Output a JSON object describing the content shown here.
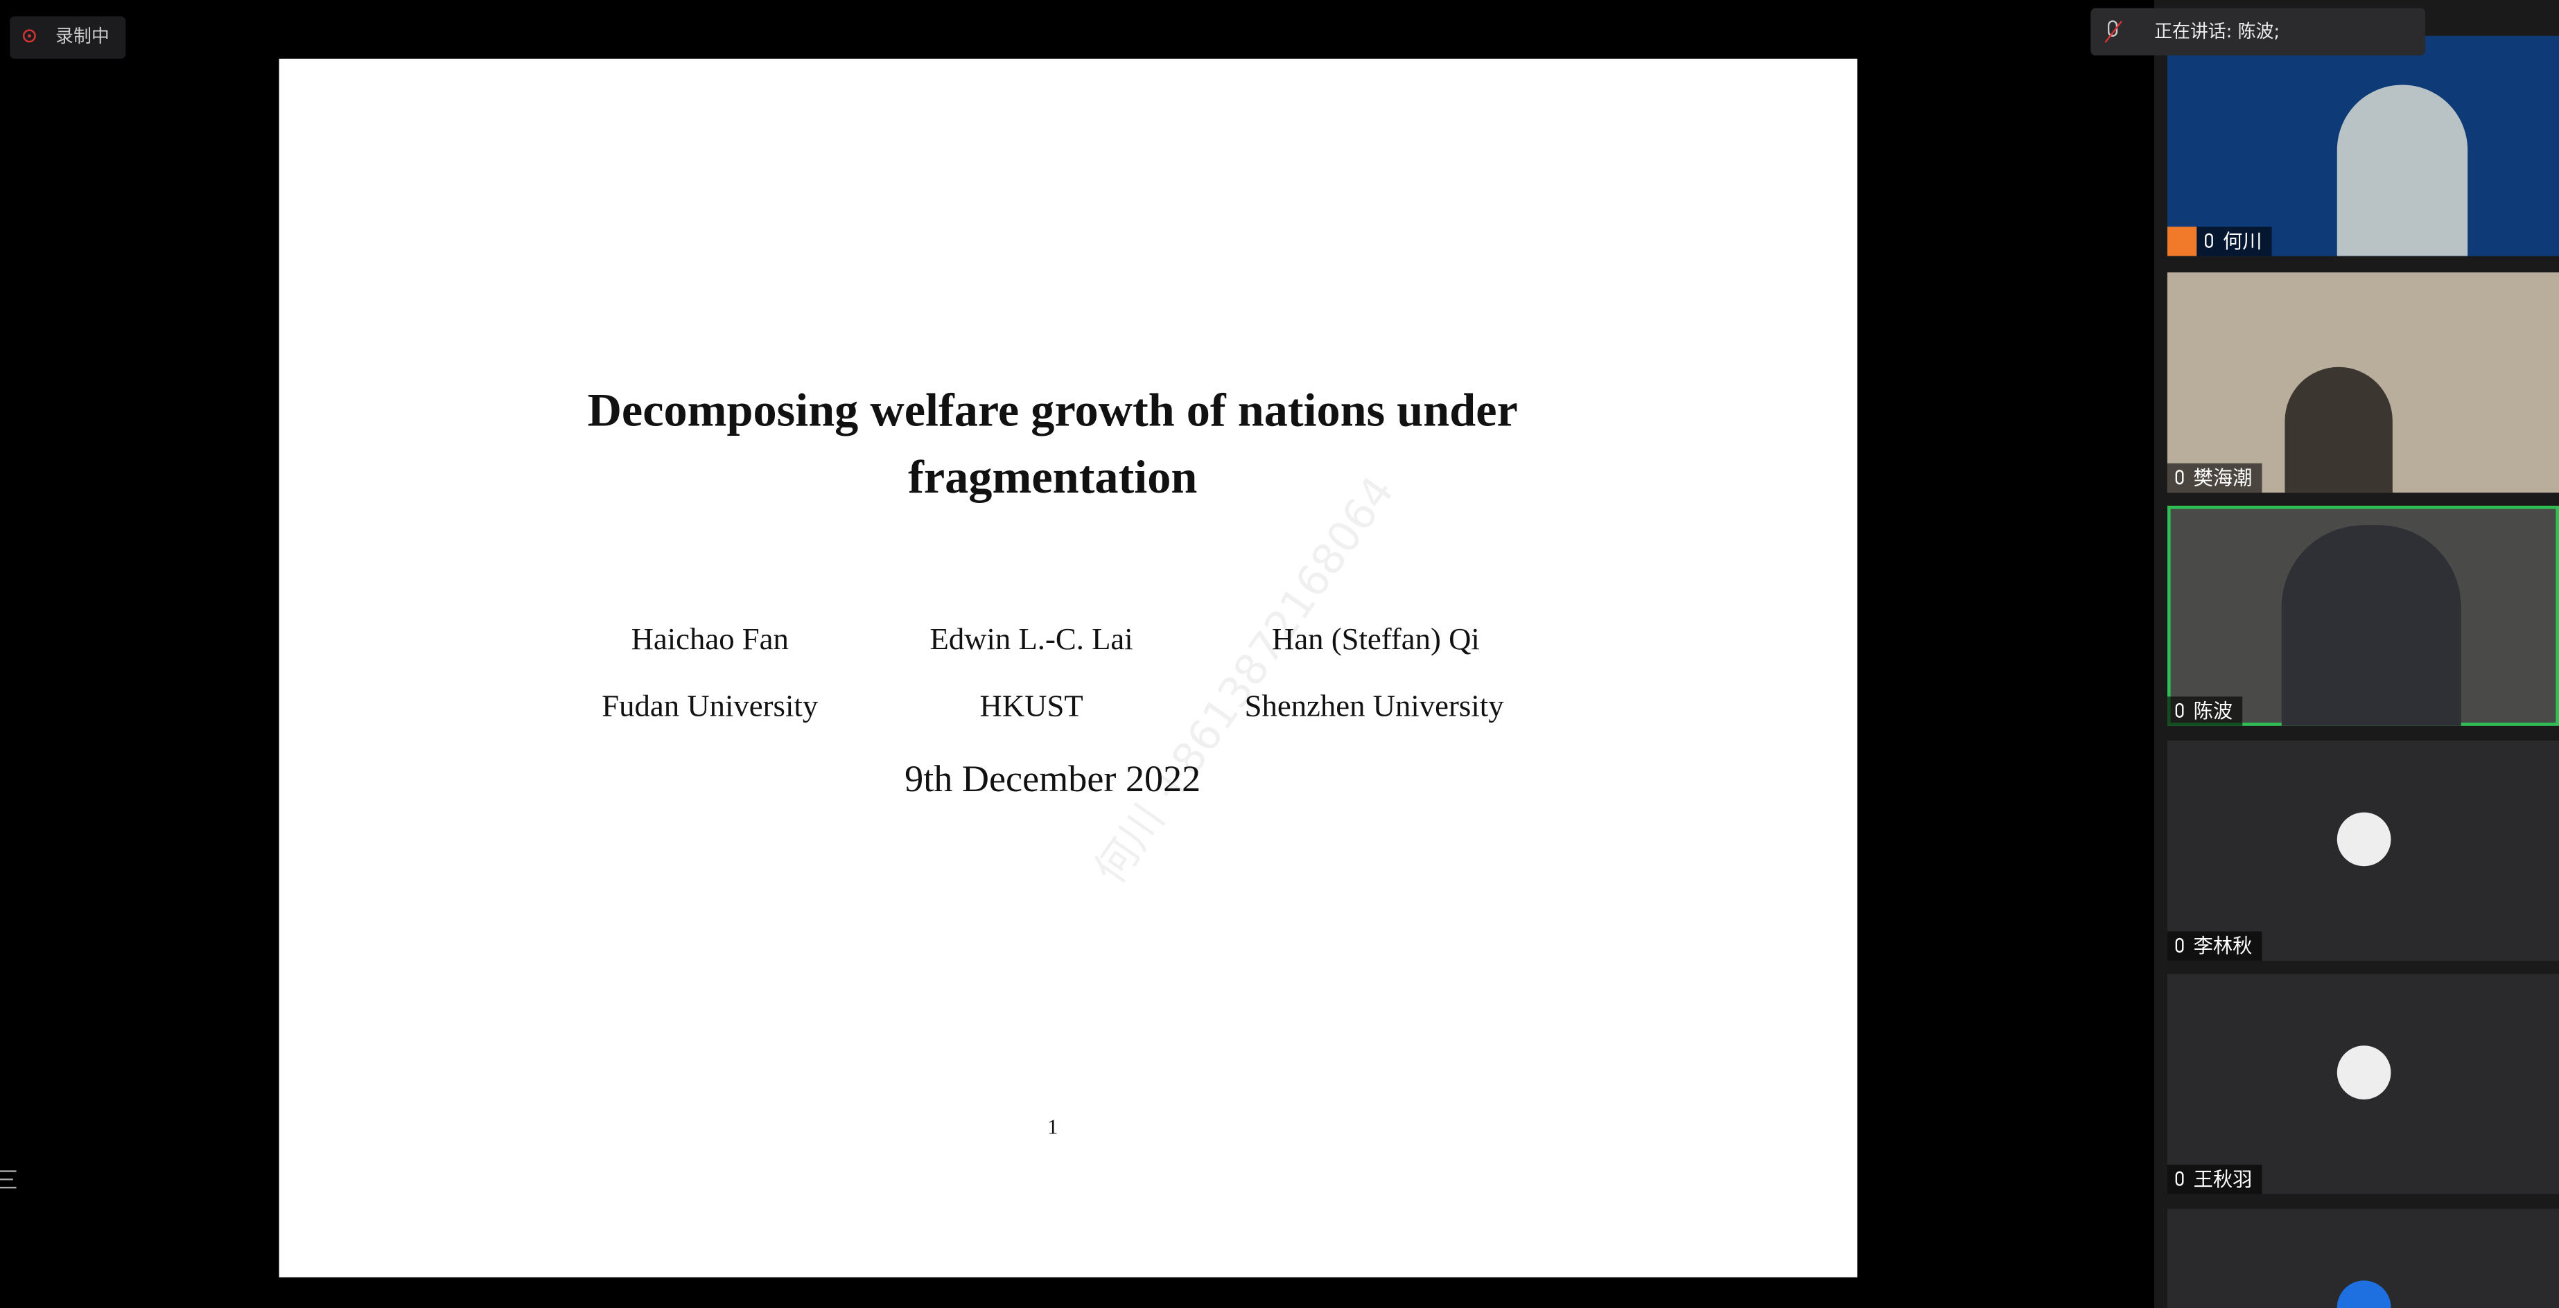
{
  "recording": {
    "label": "录制中"
  },
  "slide": {
    "title_lines": [
      "Decomposing welfare growth of nations under",
      "fragmentation"
    ],
    "authors": [
      {
        "name": "Haichao Fan",
        "affiliation": "Fudan University"
      },
      {
        "name": "Edwin L.-C. Lai",
        "affiliation": "HKUST"
      },
      {
        "name": "Han (Steffan) Qi",
        "affiliation": "Shenzhen University"
      }
    ],
    "date": "9th December 2022",
    "page_number": "1",
    "watermark": "何川 +8613872168064"
  },
  "speaking": {
    "label": "正在讲话: 陈波;"
  },
  "participants": [
    {
      "name": "何川"
    },
    {
      "name": "樊海潮"
    },
    {
      "name": "陈波"
    },
    {
      "name": "李林秋"
    },
    {
      "name": "王秋羽"
    }
  ]
}
